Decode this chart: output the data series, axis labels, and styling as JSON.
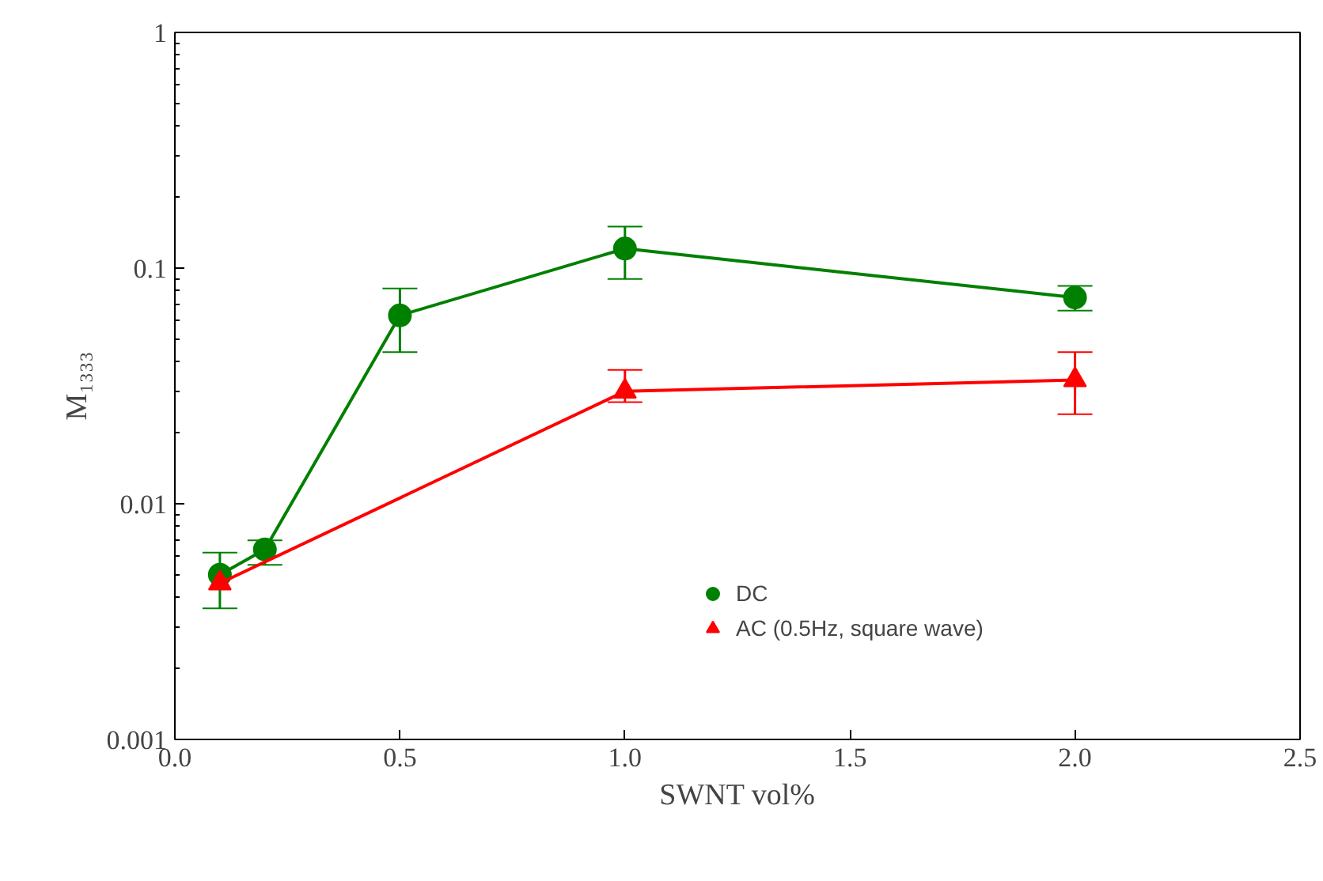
{
  "chart_data": {
    "type": "line",
    "xlabel": "SWNT vol%",
    "ylabel": "M₁₃₃₃",
    "xlim": [
      0,
      2.5
    ],
    "xticks": [
      {
        "value": 0,
        "label": "0.0"
      },
      0.5,
      {
        "value": 1,
        "label": "1.0"
      },
      1.5,
      {
        "value": 2,
        "label": "2.0"
      },
      2.5
    ],
    "ylim": [
      0.001,
      1
    ],
    "yticks": [
      0.001,
      0.01,
      0.1,
      1
    ],
    "log": "y",
    "grid": false,
    "legend": "bottom right",
    "series": [
      {
        "name": "DC",
        "color": "#008000",
        "marker": "circle",
        "x": [
          0.1,
          0.2,
          0.5,
          1.0,
          2.0
        ],
        "values": [
          0.005,
          0.0064,
          0.063,
          0.121,
          0.075
        ],
        "errors": [
          [
            0.0036,
            0.0062
          ],
          [
            0.0055,
            0.007
          ],
          [
            0.044,
            0.082
          ],
          [
            0.09,
            0.15
          ],
          [
            0.066,
            0.084
          ]
        ]
      },
      {
        "name": "AC (0.5Hz, square wave)",
        "color": "#ff0000",
        "marker": "triangle",
        "x": [
          0.1,
          1.0,
          2.0
        ],
        "values": [
          0.0046,
          0.03,
          0.0335
        ],
        "errors": [
          null,
          [
            0.027,
            0.037
          ],
          [
            0.024,
            0.044
          ]
        ]
      }
    ]
  }
}
